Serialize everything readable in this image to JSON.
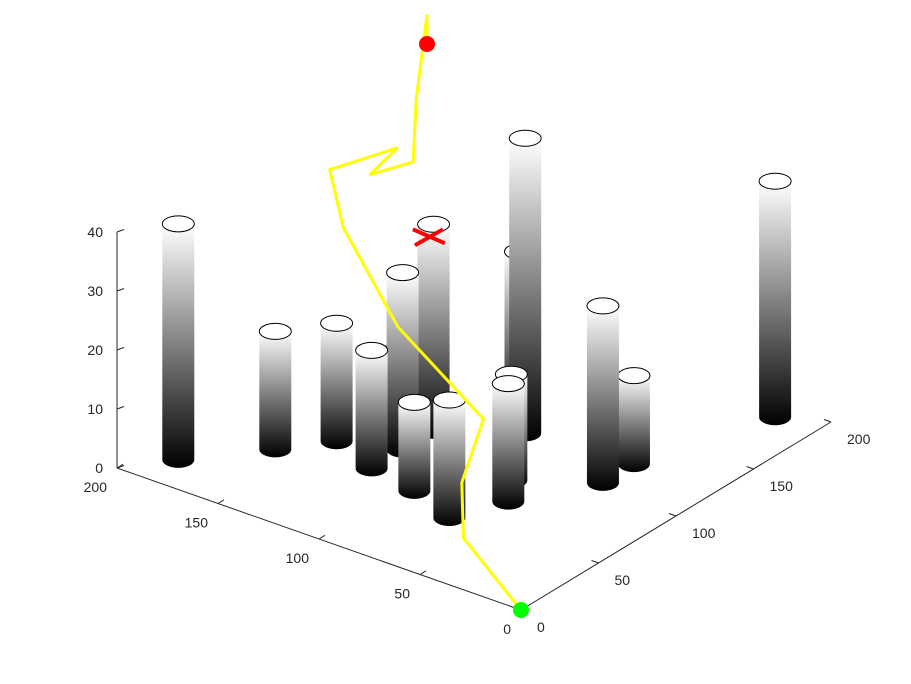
{
  "chart_data": {
    "type": "3d-scatter",
    "title": "",
    "xlabel": "",
    "ylabel": "",
    "zlabel": "",
    "xlim": [
      0,
      200
    ],
    "ylim": [
      0,
      200
    ],
    "zlim": [
      0,
      40
    ],
    "x_ticks": [
      "0",
      "50",
      "100",
      "150",
      "200"
    ],
    "y_ticks": [
      "0",
      "50",
      "100",
      "150",
      "200"
    ],
    "z_ticks": [
      "0",
      "10",
      "20",
      "30",
      "40"
    ],
    "grid": false,
    "colors": {
      "obstacle_top": "#ffffff",
      "obstacle_bottom": "#000000",
      "path": "#ffff00",
      "start": "#00ff00",
      "goal": "#ff0000",
      "crash_marker": "#ff0000"
    },
    "obstacles": [
      {
        "x": 190,
        "y": 20,
        "height": 40
      },
      {
        "x": 20,
        "y": 185,
        "height": 40
      },
      {
        "x": 120,
        "y": 90,
        "height": 50
      },
      {
        "x": 80,
        "y": 120,
        "height": 30
      },
      {
        "x": 100,
        "y": 120,
        "height": 35
      },
      {
        "x": 130,
        "y": 100,
        "height": 28
      },
      {
        "x": 50,
        "y": 160,
        "height": 20
      },
      {
        "x": 105,
        "y": 40,
        "height": 30
      },
      {
        "x": 60,
        "y": 120,
        "height": 20
      },
      {
        "x": 125,
        "y": 40,
        "height": 15
      },
      {
        "x": 85,
        "y": 70,
        "height": 18
      },
      {
        "x": 100,
        "y": 145,
        "height": 10
      },
      {
        "x": 70,
        "y": 145,
        "height": 20
      },
      {
        "x": 55,
        "y": 95,
        "height": 15
      },
      {
        "x": 70,
        "y": 60,
        "height": 20
      },
      {
        "x": 45,
        "y": 70,
        "height": 20
      }
    ],
    "path": {
      "start": [
        0,
        0,
        0
      ],
      "goal": [
        200,
        200,
        40
      ],
      "points": [
        [
          0,
          0,
          0
        ],
        [
          15,
          40,
          5
        ],
        [
          40,
          60,
          8
        ],
        [
          80,
          80,
          10
        ],
        [
          90,
          130,
          18
        ],
        [
          120,
          180,
          24
        ],
        [
          132,
          196,
          30
        ],
        [
          155,
          180,
          32
        ],
        [
          150,
          190,
          27
        ],
        [
          165,
          180,
          28
        ],
        [
          180,
          190,
          35
        ],
        [
          200,
          200,
          45
        ],
        [
          200,
          200,
          40
        ]
      ]
    },
    "crash_marker": {
      "x": 110,
      "y": 130,
      "z": 30
    }
  }
}
